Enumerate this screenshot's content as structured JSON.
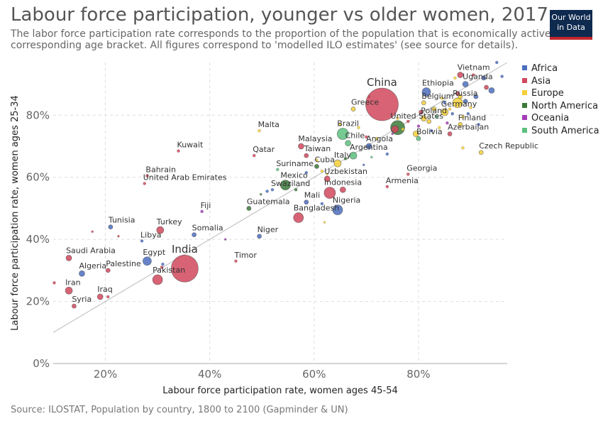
{
  "header": {
    "title": "Labour force participation, younger vs older women, 2017",
    "subtitle": "The labor force participation rate corresponds to the proportion of the population that is economically active in the corresponding age bracket. All figures correspond to 'modelled ILO estimates' (see source for details).",
    "logo_line1": "Our World",
    "logo_line2": "in Data"
  },
  "footer": {
    "source": "Source: ILOSTAT, Population by country, 1800 to 2100 (Gapminder & UN)"
  },
  "legend": [
    {
      "name": "Africa",
      "color": "#4c6fc0"
    },
    {
      "name": "Asia",
      "color": "#d0485c"
    },
    {
      "name": "Europe",
      "color": "#f5d03a"
    },
    {
      "name": "North America",
      "color": "#3c7a3a"
    },
    {
      "name": "Oceania",
      "color": "#a43cb8"
    },
    {
      "name": "South America",
      "color": "#5dbf7e"
    }
  ],
  "chart_data": {
    "type": "scatter",
    "title": "Labour force participation, younger vs older women, 2017",
    "xlabel": "Labour force participation rate, women ages 45-54",
    "ylabel": "Labour force participation rate, women ages 25-34",
    "xlim": [
      10,
      97
    ],
    "ylim": [
      0,
      97
    ],
    "xticks": [
      20,
      40,
      60,
      80
    ],
    "yticks": [
      0,
      20,
      40,
      60,
      80
    ],
    "tick_format": "%",
    "grid": true,
    "legend_position": "right",
    "reference_line": "y = x",
    "points": [
      {
        "label": "China",
        "x": 73,
        "y": 83.5,
        "region": "Asia",
        "r": 23
      },
      {
        "label": "India",
        "x": 35.2,
        "y": 30.6,
        "region": "Asia",
        "r": 19
      },
      {
        "label": "Vietnam",
        "x": 88,
        "y": 93,
        "region": "Asia",
        "r": 4
      },
      {
        "label": "Uganda",
        "x": 89,
        "y": 90,
        "region": "Africa",
        "r": 4
      },
      {
        "label": "Ethiopia",
        "x": 81.5,
        "y": 87.5,
        "region": "Africa",
        "r": 6
      },
      {
        "label": "Belgium",
        "x": 81,
        "y": 84,
        "region": "Europe",
        "r": 3
      },
      {
        "label": "Russia",
        "x": 87.5,
        "y": 84,
        "region": "Europe",
        "r": 7
      },
      {
        "label": "Germany",
        "x": 85,
        "y": 81,
        "region": "Europe",
        "r": 5
      },
      {
        "label": "Greece",
        "x": 67.5,
        "y": 82,
        "region": "Europe",
        "r": 3
      },
      {
        "label": "Poland",
        "x": 81,
        "y": 79,
        "region": "Europe",
        "r": 4
      },
      {
        "label": "United States",
        "x": 76,
        "y": 76,
        "region": "North America",
        "r": 10
      },
      {
        "label": "Finland",
        "x": 88,
        "y": 77,
        "region": "Europe",
        "r": 3
      },
      {
        "label": "Azerbaijan",
        "x": 86,
        "y": 74,
        "region": "Asia",
        "r": 3
      },
      {
        "label": "Bolivia",
        "x": 80,
        "y": 72.5,
        "region": "South America",
        "r": 3
      },
      {
        "label": "Brazil",
        "x": 65.5,
        "y": 74,
        "region": "South America",
        "r": 8
      },
      {
        "label": "Chile",
        "x": 66.5,
        "y": 71,
        "region": "South America",
        "r": 4
      },
      {
        "label": "Angola",
        "x": 70.5,
        "y": 70,
        "region": "Africa",
        "r": 4
      },
      {
        "label": "Argentina",
        "x": 67.5,
        "y": 67,
        "region": "South America",
        "r": 5
      },
      {
        "label": "Czech Republic",
        "x": 92,
        "y": 68,
        "region": "Europe",
        "r": 3
      },
      {
        "label": "Malta",
        "x": 49.5,
        "y": 75,
        "region": "Europe",
        "r": 2
      },
      {
        "label": "Malaysia",
        "x": 57.5,
        "y": 70,
        "region": "Asia",
        "r": 4
      },
      {
        "label": "Qatar",
        "x": 48.5,
        "y": 67,
        "region": "Asia",
        "r": 2
      },
      {
        "label": "Taiwan",
        "x": 58.5,
        "y": 67,
        "region": "Asia",
        "r": 3
      },
      {
        "label": "Kuwait",
        "x": 34,
        "y": 68.5,
        "region": "Asia",
        "r": 2
      },
      {
        "label": "Italy",
        "x": 64.5,
        "y": 64.5,
        "region": "Europe",
        "r": 5
      },
      {
        "label": "Cuba",
        "x": 60.5,
        "y": 63.5,
        "region": "North America",
        "r": 3
      },
      {
        "label": "Suriname",
        "x": 53,
        "y": 62.5,
        "region": "South America",
        "r": 2
      },
      {
        "label": "Georgia",
        "x": 78,
        "y": 61,
        "region": "Asia",
        "r": 2
      },
      {
        "label": "Uzbekistan",
        "x": 62.5,
        "y": 59.5,
        "region": "Asia",
        "r": 4
      },
      {
        "label": "Bahrain",
        "x": 28,
        "y": 60.5,
        "region": "Asia",
        "r": 2
      },
      {
        "label": "United Arab Emirates",
        "x": 27.5,
        "y": 58,
        "region": "Asia",
        "r": 2
      },
      {
        "label": "Mexico",
        "x": 54.5,
        "y": 57.5,
        "region": "North America",
        "r": 7
      },
      {
        "label": "Swaziland",
        "x": 52,
        "y": 56,
        "region": "Africa",
        "r": 2
      },
      {
        "label": "Indonesia",
        "x": 63,
        "y": 55,
        "region": "Asia",
        "r": 8
      },
      {
        "label": "Armenia",
        "x": 74,
        "y": 57,
        "region": "Asia",
        "r": 2
      },
      {
        "label": "Mali",
        "x": 58.5,
        "y": 52,
        "region": "Africa",
        "r": 3
      },
      {
        "label": "Nigeria",
        "x": 64.5,
        "y": 49.5,
        "region": "Africa",
        "r": 7
      },
      {
        "label": "Guatemala",
        "x": 47.5,
        "y": 50,
        "region": "North America",
        "r": 3
      },
      {
        "label": "Bangladesh",
        "x": 57,
        "y": 47,
        "region": "Asia",
        "r": 7
      },
      {
        "label": "Fiji",
        "x": 38.5,
        "y": 49,
        "region": "Oceania",
        "r": 2
      },
      {
        "label": "Tunisia",
        "x": 21,
        "y": 44,
        "region": "Africa",
        "r": 3
      },
      {
        "label": "Turkey",
        "x": 30.5,
        "y": 43,
        "region": "Asia",
        "r": 5
      },
      {
        "label": "Somalia",
        "x": 37,
        "y": 41.5,
        "region": "Africa",
        "r": 3
      },
      {
        "label": "Niger",
        "x": 49.5,
        "y": 41,
        "region": "Africa",
        "r": 3
      },
      {
        "label": "Libya",
        "x": 27,
        "y": 39.5,
        "region": "Africa",
        "r": 2
      },
      {
        "label": "Saudi Arabia",
        "x": 13,
        "y": 34,
        "region": "Asia",
        "r": 4
      },
      {
        "label": "Egypt",
        "x": 28,
        "y": 33,
        "region": "Africa",
        "r": 6
      },
      {
        "label": "Timor",
        "x": 45,
        "y": 33,
        "region": "Asia",
        "r": 2
      },
      {
        "label": "Palestine",
        "x": 20.5,
        "y": 30,
        "region": "Asia",
        "r": 3
      },
      {
        "label": "Algeria",
        "x": 15.5,
        "y": 29,
        "region": "Africa",
        "r": 4
      },
      {
        "label": "Pakistan",
        "x": 30,
        "y": 27,
        "region": "Asia",
        "r": 7
      },
      {
        "label": "Iran",
        "x": 13,
        "y": 23.5,
        "region": "Asia",
        "r": 5
      },
      {
        "label": "Iraq",
        "x": 19,
        "y": 21.5,
        "region": "Asia",
        "r": 4
      },
      {
        "label": "Syria",
        "x": 14,
        "y": 18.5,
        "region": "Asia",
        "r": 3
      },
      {
        "x": 10.2,
        "y": 26,
        "region": "Asia",
        "r": 2
      },
      {
        "x": 17.5,
        "y": 42.5,
        "region": "Asia",
        "r": 1.5
      },
      {
        "x": 22.5,
        "y": 41,
        "region": "Asia",
        "r": 1.5
      },
      {
        "x": 20.5,
        "y": 21.5,
        "region": "Asia",
        "r": 2
      },
      {
        "x": 30.8,
        "y": 31,
        "region": "Asia",
        "r": 2
      },
      {
        "x": 31,
        "y": 32,
        "region": "Africa",
        "r": 2
      },
      {
        "x": 43,
        "y": 40,
        "region": "Oceania",
        "r": 1.5
      },
      {
        "x": 51,
        "y": 55.5,
        "region": "Africa",
        "r": 2
      },
      {
        "x": 49.8,
        "y": 54.5,
        "region": "North America",
        "r": 1.5
      },
      {
        "x": 56.5,
        "y": 56,
        "region": "North America",
        "r": 2
      },
      {
        "x": 61.5,
        "y": 51.5,
        "region": "Africa",
        "r": 2
      },
      {
        "x": 62,
        "y": 45.5,
        "region": "Europe",
        "r": 1.5
      },
      {
        "x": 58.5,
        "y": 61.5,
        "region": "Africa",
        "r": 2
      },
      {
        "x": 60.5,
        "y": 65.5,
        "region": "Europe",
        "r": 2
      },
      {
        "x": 61.5,
        "y": 62,
        "region": "Europe",
        "r": 2
      },
      {
        "x": 62.5,
        "y": 61,
        "region": "Europe",
        "r": 1.5
      },
      {
        "x": 65.5,
        "y": 56,
        "region": "Asia",
        "r": 4
      },
      {
        "x": 66,
        "y": 66,
        "region": "North America",
        "r": 2
      },
      {
        "x": 69.5,
        "y": 64,
        "region": "Africa",
        "r": 1.5
      },
      {
        "x": 71,
        "y": 66.5,
        "region": "South America",
        "r": 1.5
      },
      {
        "x": 72,
        "y": 72.5,
        "region": "Europe",
        "r": 2
      },
      {
        "x": 68.5,
        "y": 76,
        "region": "Europe",
        "r": 2
      },
      {
        "x": 70,
        "y": 73,
        "region": "Asia",
        "r": 2
      },
      {
        "x": 74,
        "y": 67.5,
        "region": "Africa",
        "r": 2
      },
      {
        "x": 75,
        "y": 74,
        "region": "Oceania",
        "r": 1.5
      },
      {
        "x": 75.5,
        "y": 75.5,
        "region": "Asia",
        "r": 5
      },
      {
        "x": 76,
        "y": 79,
        "region": "Europe",
        "r": 2
      },
      {
        "x": 77,
        "y": 75.5,
        "region": "Europe",
        "r": 2
      },
      {
        "x": 78,
        "y": 78,
        "region": "Asia",
        "r": 2
      },
      {
        "x": 79.5,
        "y": 74,
        "region": "Europe",
        "r": 4
      },
      {
        "x": 80,
        "y": 76.5,
        "region": "Oceania",
        "r": 2
      },
      {
        "x": 80.5,
        "y": 81,
        "region": "Asia",
        "r": 3
      },
      {
        "x": 82,
        "y": 78,
        "region": "Europe",
        "r": 3
      },
      {
        "x": 82.5,
        "y": 75,
        "region": "Africa",
        "r": 2
      },
      {
        "x": 83,
        "y": 82,
        "region": "Europe",
        "r": 3
      },
      {
        "x": 83.5,
        "y": 79.5,
        "region": "South America",
        "r": 2
      },
      {
        "x": 84,
        "y": 76,
        "region": "Europe",
        "r": 2
      },
      {
        "x": 84.5,
        "y": 85.5,
        "region": "Europe",
        "r": 2
      },
      {
        "x": 85,
        "y": 84,
        "region": "Africa",
        "r": 2
      },
      {
        "x": 85.5,
        "y": 77.5,
        "region": "Oceania",
        "r": 2
      },
      {
        "x": 86,
        "y": 82,
        "region": "Europe",
        "r": 2
      },
      {
        "x": 86.5,
        "y": 80.5,
        "region": "Africa",
        "r": 2
      },
      {
        "x": 87,
        "y": 92,
        "region": "Europe",
        "r": 2
      },
      {
        "x": 87.5,
        "y": 87,
        "region": "Asia",
        "r": 3
      },
      {
        "x": 88,
        "y": 86,
        "region": "Europe",
        "r": 3
      },
      {
        "x": 88.5,
        "y": 79.5,
        "region": "Europe",
        "r": 2
      },
      {
        "x": 88.5,
        "y": 69.5,
        "region": "Europe",
        "r": 2
      },
      {
        "x": 89,
        "y": 84.5,
        "region": "Africa",
        "r": 3
      },
      {
        "x": 89.5,
        "y": 80.5,
        "region": "Africa",
        "r": 2
      },
      {
        "x": 90,
        "y": 82.5,
        "region": "Europe",
        "r": 2
      },
      {
        "x": 91,
        "y": 86,
        "region": "Africa",
        "r": 3
      },
      {
        "x": 91.5,
        "y": 77,
        "region": "Africa",
        "r": 2
      },
      {
        "x": 92.5,
        "y": 92,
        "region": "Africa",
        "r": 3
      },
      {
        "x": 93,
        "y": 89,
        "region": "Asia",
        "r": 3
      },
      {
        "x": 94,
        "y": 88,
        "region": "Africa",
        "r": 4
      },
      {
        "x": 95,
        "y": 97,
        "region": "Africa",
        "r": 2
      },
      {
        "x": 96,
        "y": 92.5,
        "region": "Africa",
        "r": 2
      },
      {
        "x": 90.5,
        "y": 93,
        "region": "Asia",
        "r": 2
      },
      {
        "x": 65,
        "y": 77,
        "region": "Europe",
        "r": 2
      },
      {
        "x": 70.5,
        "y": 86,
        "region": "Asia",
        "r": 1.5
      }
    ]
  }
}
